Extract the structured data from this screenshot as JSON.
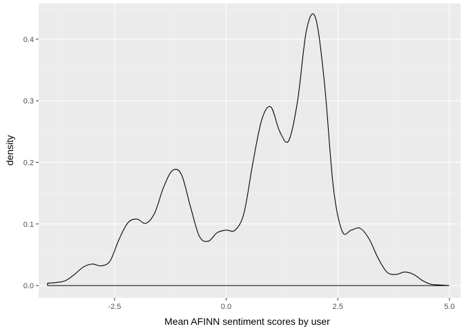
{
  "chart_data": {
    "type": "area",
    "title": "",
    "xlabel": "Mean AFINN sentiment scores by user",
    "ylabel": "density",
    "xlim": [
      -4.2,
      5.25
    ],
    "ylim": [
      -0.02,
      0.458
    ],
    "x_ticks": [
      -2.5,
      0.0,
      2.5,
      5.0
    ],
    "x_tick_labels": [
      "-2.5",
      "0.0",
      "2.5",
      "5.0"
    ],
    "y_ticks": [
      0.0,
      0.1,
      0.2,
      0.3,
      0.4
    ],
    "y_tick_labels": [
      "0.0",
      "0.1",
      "0.2",
      "0.3",
      "0.4"
    ],
    "grid": true,
    "legend": "none",
    "colors": {
      "panel_background": "#EBEBEB",
      "grid_major": "#FFFFFF",
      "grid_minor": "#F5F5F5",
      "line": "#000000"
    },
    "series": [
      {
        "x": [
          -4.0,
          -3.8,
          -3.6,
          -3.4,
          -3.2,
          -3.0,
          -2.8,
          -2.6,
          -2.4,
          -2.2,
          -2.0,
          -1.8,
          -1.6,
          -1.4,
          -1.2,
          -1.0,
          -0.8,
          -0.6,
          -0.4,
          -0.2,
          0.0,
          0.2,
          0.4,
          0.6,
          0.8,
          1.0,
          1.2,
          1.4,
          1.6,
          1.8,
          2.0,
          2.2,
          2.4,
          2.6,
          2.8,
          3.0,
          3.2,
          3.4,
          3.6,
          3.8,
          4.0,
          4.2,
          4.4,
          4.6,
          4.8,
          5.0
        ],
        "values": [
          0.004,
          0.005,
          0.008,
          0.018,
          0.03,
          0.035,
          0.032,
          0.04,
          0.075,
          0.102,
          0.108,
          0.101,
          0.118,
          0.16,
          0.187,
          0.18,
          0.128,
          0.08,
          0.072,
          0.086,
          0.09,
          0.09,
          0.118,
          0.2,
          0.27,
          0.29,
          0.25,
          0.235,
          0.3,
          0.415,
          0.435,
          0.33,
          0.16,
          0.088,
          0.09,
          0.093,
          0.076,
          0.045,
          0.022,
          0.018,
          0.022,
          0.018,
          0.008,
          0.002,
          0.001,
          0.0
        ]
      }
    ]
  }
}
